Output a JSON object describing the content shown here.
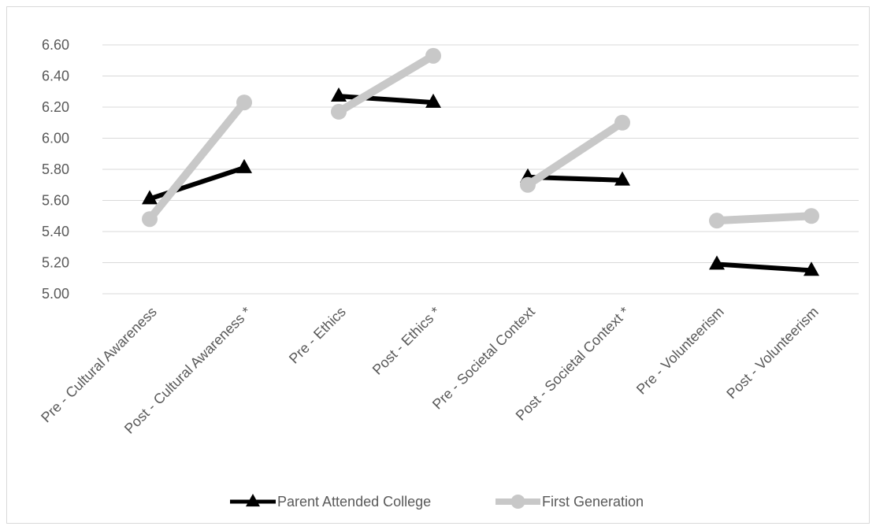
{
  "chart_data": {
    "type": "line",
    "categories": [
      "Pre - Cultural Awareness",
      "Post - Cultural Awareness *",
      "Pre - Ethics",
      "Post - Ethics *",
      "Pre - Societal Context",
      "Post - Societal Context *",
      "Pre - Volunteerism",
      "Post - Volunteerism"
    ],
    "segments": [
      [
        0,
        1
      ],
      [
        2,
        3
      ],
      [
        4,
        5
      ],
      [
        6,
        7
      ]
    ],
    "series": [
      {
        "name": "Parent Attended College",
        "color": "#000000",
        "marker": "triangle",
        "values": [
          5.61,
          5.81,
          6.27,
          6.23,
          5.75,
          5.73,
          5.19,
          5.15
        ]
      },
      {
        "name": "First Generation",
        "color": "#c8c8c8",
        "marker": "circle",
        "values": [
          5.48,
          6.23,
          6.17,
          6.53,
          5.7,
          6.1,
          5.47,
          5.5
        ]
      }
    ],
    "yticks": [
      "5.00",
      "5.20",
      "5.40",
      "5.60",
      "5.80",
      "6.00",
      "6.20",
      "6.40",
      "6.60"
    ],
    "ylim": [
      5.0,
      6.6
    ],
    "grid": true,
    "legend_position": "bottom"
  }
}
